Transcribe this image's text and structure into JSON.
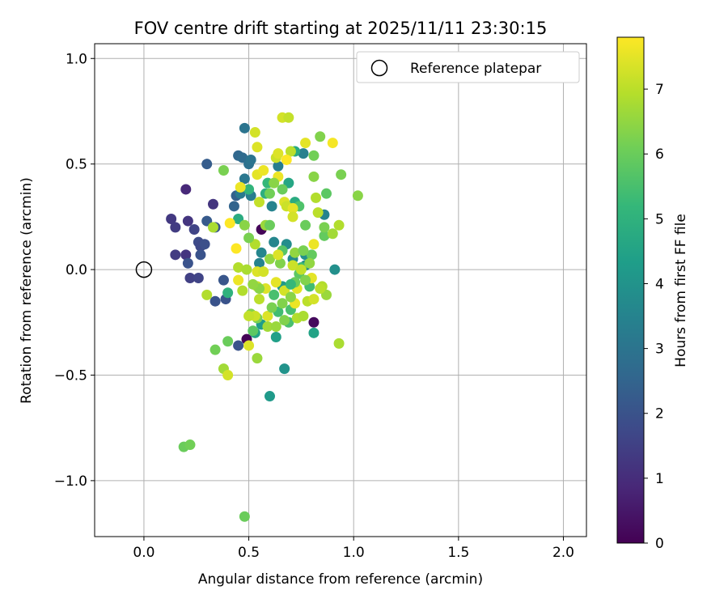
{
  "chart_data": {
    "type": "scatter",
    "title": "FOV centre drift starting at 2025/11/11 23:30:15",
    "xlabel": "Angular distance from reference (arcmin)",
    "ylabel": "Rotation from reference (arcmin)",
    "xlim": [
      -0.235,
      2.11
    ],
    "ylim": [
      -1.265,
      1.07
    ],
    "xticks": [
      0.0,
      0.5,
      1.0,
      1.5,
      2.0
    ],
    "xtick_labels": [
      "0.0",
      "0.5",
      "1.0",
      "1.5",
      "2.0"
    ],
    "yticks": [
      -1.0,
      -0.5,
      0.0,
      0.5,
      1.0
    ],
    "ytick_labels": [
      "−1.0",
      "−0.5",
      "0.0",
      "0.5",
      "1.0"
    ],
    "grid": true,
    "legend": {
      "label": "Reference platepar",
      "location": "top-right"
    },
    "reference_point": {
      "x": 0.0,
      "y": 0.0
    },
    "colorbar": {
      "label": "Hours from first FF file",
      "range": [
        0,
        7.8
      ],
      "ticks": [
        0,
        1,
        2,
        3,
        4,
        5,
        6,
        7
      ],
      "tick_labels": [
        "0",
        "1",
        "2",
        "3",
        "4",
        "5",
        "6",
        "7"
      ],
      "colormap": [
        "#440154",
        "#482878",
        "#3e4989",
        "#31688e",
        "#26828e",
        "#1f9e89",
        "#35b779",
        "#6ece58",
        "#b5de2b",
        "#fde725"
      ]
    },
    "points": [
      {
        "x": 0.49,
        "y": -0.33,
        "h": 0.05
      },
      {
        "x": 0.56,
        "y": 0.19,
        "h": 0.1
      },
      {
        "x": 0.81,
        "y": -0.25,
        "h": 0.2
      },
      {
        "x": 0.2,
        "y": 0.38,
        "h": 0.9
      },
      {
        "x": 0.33,
        "y": 0.31,
        "h": 1.2
      },
      {
        "x": 0.13,
        "y": 0.24,
        "h": 1.3
      },
      {
        "x": 0.21,
        "y": 0.23,
        "h": 1.2
      },
      {
        "x": 0.15,
        "y": 0.2,
        "h": 1.4
      },
      {
        "x": 0.24,
        "y": 0.19,
        "h": 1.6
      },
      {
        "x": 0.2,
        "y": 0.07,
        "h": 1.2
      },
      {
        "x": 0.15,
        "y": 0.07,
        "h": 1.4
      },
      {
        "x": 0.22,
        "y": -0.04,
        "h": 1.5
      },
      {
        "x": 0.26,
        "y": -0.04,
        "h": 1.6
      },
      {
        "x": 0.26,
        "y": 0.13,
        "h": 1.8
      },
      {
        "x": 0.27,
        "y": 0.11,
        "h": 1.7
      },
      {
        "x": 0.29,
        "y": 0.12,
        "h": 1.9
      },
      {
        "x": 0.27,
        "y": 0.07,
        "h": 2.0
      },
      {
        "x": 0.21,
        "y": 0.03,
        "h": 2.0
      },
      {
        "x": 0.3,
        "y": 0.23,
        "h": 2.2
      },
      {
        "x": 0.34,
        "y": 0.2,
        "h": 2.1
      },
      {
        "x": 0.3,
        "y": 0.5,
        "h": 2.3
      },
      {
        "x": 0.34,
        "y": -0.15,
        "h": 2.0
      },
      {
        "x": 0.39,
        "y": -0.14,
        "h": 2.0
      },
      {
        "x": 0.38,
        "y": -0.05,
        "h": 2.1
      },
      {
        "x": 0.45,
        "y": -0.36,
        "h": 2.0
      },
      {
        "x": 0.44,
        "y": 0.35,
        "h": 2.4
      },
      {
        "x": 0.43,
        "y": 0.3,
        "h": 2.5
      },
      {
        "x": 0.45,
        "y": 0.54,
        "h": 2.6
      },
      {
        "x": 0.47,
        "y": 0.53,
        "h": 2.7
      },
      {
        "x": 0.48,
        "y": 0.67,
        "h": 3.0
      },
      {
        "x": 0.5,
        "y": 0.5,
        "h": 2.9
      },
      {
        "x": 0.51,
        "y": 0.52,
        "h": 3.0
      },
      {
        "x": 0.48,
        "y": 0.43,
        "h": 3.1
      },
      {
        "x": 0.46,
        "y": 0.36,
        "h": 3.2
      },
      {
        "x": 0.51,
        "y": 0.35,
        "h": 3.3
      },
      {
        "x": 0.64,
        "y": 0.49,
        "h": 3.3
      },
      {
        "x": 0.76,
        "y": 0.55,
        "h": 3.4
      },
      {
        "x": 0.61,
        "y": 0.3,
        "h": 3.5
      },
      {
        "x": 0.55,
        "y": 0.03,
        "h": 3.5
      },
      {
        "x": 0.56,
        "y": 0.08,
        "h": 3.6
      },
      {
        "x": 0.62,
        "y": 0.13,
        "h": 3.6
      },
      {
        "x": 0.68,
        "y": 0.12,
        "h": 3.8
      },
      {
        "x": 0.71,
        "y": 0.05,
        "h": 3.7
      },
      {
        "x": 0.77,
        "y": 0.07,
        "h": 3.9
      },
      {
        "x": 0.77,
        "y": 0.02,
        "h": 3.8
      },
      {
        "x": 0.86,
        "y": 0.26,
        "h": 3.5
      },
      {
        "x": 0.91,
        "y": 0.0,
        "h": 3.9
      },
      {
        "x": 0.67,
        "y": -0.47,
        "h": 4.0
      },
      {
        "x": 0.6,
        "y": -0.6,
        "h": 4.2
      },
      {
        "x": 0.63,
        "y": -0.32,
        "h": 4.4
      },
      {
        "x": 0.56,
        "y": -0.26,
        "h": 4.3
      },
      {
        "x": 0.53,
        "y": -0.3,
        "h": 4.5
      },
      {
        "x": 0.81,
        "y": -0.3,
        "h": 4.5
      },
      {
        "x": 0.66,
        "y": -0.08,
        "h": 4.2
      },
      {
        "x": 0.69,
        "y": 0.41,
        "h": 4.6
      },
      {
        "x": 0.72,
        "y": 0.56,
        "h": 4.7
      },
      {
        "x": 0.72,
        "y": 0.32,
        "h": 4.8
      },
      {
        "x": 0.58,
        "y": 0.36,
        "h": 4.9
      },
      {
        "x": 0.45,
        "y": 0.24,
        "h": 4.8
      },
      {
        "x": 0.4,
        "y": -0.11,
        "h": 5.0
      },
      {
        "x": 0.5,
        "y": 0.38,
        "h": 5.1
      },
      {
        "x": 0.59,
        "y": 0.41,
        "h": 5.2
      },
      {
        "x": 0.75,
        "y": 0.01,
        "h": 5.3
      },
      {
        "x": 0.79,
        "y": -0.08,
        "h": 5.4
      },
      {
        "x": 0.7,
        "y": -0.19,
        "h": 5.5
      },
      {
        "x": 0.64,
        "y": -0.2,
        "h": 5.4
      },
      {
        "x": 0.74,
        "y": 0.3,
        "h": 5.6
      },
      {
        "x": 0.66,
        "y": 0.09,
        "h": 5.7
      },
      {
        "x": 0.69,
        "y": -0.25,
        "h": 5.5
      },
      {
        "x": 0.74,
        "y": -0.02,
        "h": 5.8
      },
      {
        "x": 0.86,
        "y": 0.16,
        "h": 5.9
      },
      {
        "x": 0.87,
        "y": 0.36,
        "h": 5.8
      },
      {
        "x": 0.94,
        "y": 0.45,
        "h": 6.2
      },
      {
        "x": 1.02,
        "y": 0.35,
        "h": 6.4
      },
      {
        "x": 0.84,
        "y": 0.63,
        "h": 6.3
      },
      {
        "x": 0.81,
        "y": 0.54,
        "h": 6.1
      },
      {
        "x": 0.81,
        "y": 0.44,
        "h": 6.4
      },
      {
        "x": 0.77,
        "y": 0.21,
        "h": 6.0
      },
      {
        "x": 0.86,
        "y": 0.2,
        "h": 6.2
      },
      {
        "x": 0.8,
        "y": 0.07,
        "h": 5.9
      },
      {
        "x": 0.65,
        "y": 0.03,
        "h": 6.3
      },
      {
        "x": 0.72,
        "y": 0.08,
        "h": 6.5
      },
      {
        "x": 0.54,
        "y": -0.42,
        "h": 6.6
      },
      {
        "x": 0.54,
        "y": -0.23,
        "h": 6.2
      },
      {
        "x": 0.51,
        "y": -0.21,
        "h": 6.3
      },
      {
        "x": 0.4,
        "y": -0.34,
        "h": 6.0
      },
      {
        "x": 0.34,
        "y": -0.38,
        "h": 6.1
      },
      {
        "x": 0.38,
        "y": -0.47,
        "h": 6.7
      },
      {
        "x": 0.19,
        "y": -0.84,
        "h": 6.0
      },
      {
        "x": 0.22,
        "y": -0.83,
        "h": 6.1
      },
      {
        "x": 0.48,
        "y": -1.17,
        "h": 6.0
      },
      {
        "x": 0.38,
        "y": 0.47,
        "h": 6.2
      },
      {
        "x": 0.33,
        "y": 0.2,
        "h": 6.8
      },
      {
        "x": 0.3,
        "y": -0.12,
        "h": 6.9
      },
      {
        "x": 0.45,
        "y": 0.01,
        "h": 6.9
      },
      {
        "x": 0.47,
        "y": -0.1,
        "h": 6.9
      },
      {
        "x": 0.58,
        "y": 0.21,
        "h": 6.6
      },
      {
        "x": 0.6,
        "y": 0.05,
        "h": 6.5
      },
      {
        "x": 0.59,
        "y": -0.27,
        "h": 6.7
      },
      {
        "x": 0.63,
        "y": -0.27,
        "h": 6.6
      },
      {
        "x": 0.67,
        "y": -0.24,
        "h": 6.3
      },
      {
        "x": 0.73,
        "y": -0.23,
        "h": 6.9
      },
      {
        "x": 0.76,
        "y": -0.22,
        "h": 6.8
      },
      {
        "x": 0.78,
        "y": -0.15,
        "h": 7.0
      },
      {
        "x": 0.85,
        "y": -0.08,
        "h": 6.9
      },
      {
        "x": 0.87,
        "y": -0.12,
        "h": 6.6
      },
      {
        "x": 0.93,
        "y": -0.35,
        "h": 6.8
      },
      {
        "x": 0.93,
        "y": 0.21,
        "h": 6.9
      },
      {
        "x": 0.9,
        "y": 0.17,
        "h": 6.7
      },
      {
        "x": 0.82,
        "y": 0.34,
        "h": 6.9
      },
      {
        "x": 0.83,
        "y": 0.27,
        "h": 7.0
      },
      {
        "x": 0.66,
        "y": 0.72,
        "h": 7.3
      },
      {
        "x": 0.69,
        "y": 0.72,
        "h": 7.1
      },
      {
        "x": 0.53,
        "y": 0.65,
        "h": 7.3
      },
      {
        "x": 0.54,
        "y": 0.58,
        "h": 7.4
      },
      {
        "x": 0.63,
        "y": 0.53,
        "h": 7.2
      },
      {
        "x": 0.64,
        "y": 0.55,
        "h": 7.4
      },
      {
        "x": 0.7,
        "y": 0.56,
        "h": 7.0
      },
      {
        "x": 0.77,
        "y": 0.6,
        "h": 7.5
      },
      {
        "x": 0.9,
        "y": 0.6,
        "h": 7.7
      },
      {
        "x": 0.68,
        "y": 0.52,
        "h": 7.8
      },
      {
        "x": 0.54,
        "y": 0.45,
        "h": 7.5
      },
      {
        "x": 0.57,
        "y": 0.47,
        "h": 7.6
      },
      {
        "x": 0.64,
        "y": 0.44,
        "h": 7.6
      },
      {
        "x": 0.46,
        "y": 0.39,
        "h": 7.6
      },
      {
        "x": 0.55,
        "y": 0.32,
        "h": 7.1
      },
      {
        "x": 0.67,
        "y": 0.32,
        "h": 7.4
      },
      {
        "x": 0.68,
        "y": 0.3,
        "h": 7.2
      },
      {
        "x": 0.71,
        "y": 0.29,
        "h": 7.5
      },
      {
        "x": 0.71,
        "y": 0.25,
        "h": 7.3
      },
      {
        "x": 0.41,
        "y": 0.22,
        "h": 7.8
      },
      {
        "x": 0.44,
        "y": 0.1,
        "h": 7.9
      },
      {
        "x": 0.45,
        "y": -0.05,
        "h": 7.6
      },
      {
        "x": 0.54,
        "y": -0.01,
        "h": 7.4
      },
      {
        "x": 0.57,
        "y": -0.01,
        "h": 7.3
      },
      {
        "x": 0.54,
        "y": -0.08,
        "h": 7.2
      },
      {
        "x": 0.63,
        "y": -0.06,
        "h": 7.5
      },
      {
        "x": 0.64,
        "y": 0.07,
        "h": 7.4
      },
      {
        "x": 0.67,
        "y": -0.1,
        "h": 7.3
      },
      {
        "x": 0.71,
        "y": 0.02,
        "h": 7.2
      },
      {
        "x": 0.81,
        "y": 0.12,
        "h": 7.6
      },
      {
        "x": 0.8,
        "y": -0.04,
        "h": 7.5
      },
      {
        "x": 0.73,
        "y": -0.09,
        "h": 7.5
      },
      {
        "x": 0.75,
        "y": 0.0,
        "h": 7.1
      },
      {
        "x": 0.81,
        "y": -0.14,
        "h": 7.3
      },
      {
        "x": 0.84,
        "y": -0.09,
        "h": 7.0
      },
      {
        "x": 0.72,
        "y": -0.16,
        "h": 7.6
      },
      {
        "x": 0.59,
        "y": -0.22,
        "h": 7.4
      },
      {
        "x": 0.53,
        "y": -0.22,
        "h": 7.2
      },
      {
        "x": 0.5,
        "y": -0.36,
        "h": 7.4
      },
      {
        "x": 0.5,
        "y": -0.22,
        "h": 7.1
      },
      {
        "x": 0.55,
        "y": -0.14,
        "h": 7.0
      },
      {
        "x": 0.58,
        "y": -0.09,
        "h": 7.4
      },
      {
        "x": 0.4,
        "y": -0.5,
        "h": 7.3
      },
      {
        "x": 0.49,
        "y": 0.0,
        "h": 6.8
      },
      {
        "x": 0.53,
        "y": 0.12,
        "h": 6.9
      },
      {
        "x": 0.5,
        "y": 0.15,
        "h": 6.2
      },
      {
        "x": 0.48,
        "y": 0.21,
        "h": 6.4
      },
      {
        "x": 0.55,
        "y": -0.09,
        "h": 6.4
      },
      {
        "x": 0.52,
        "y": -0.07,
        "h": 6.5
      },
      {
        "x": 0.61,
        "y": -0.18,
        "h": 6.2
      },
      {
        "x": 0.66,
        "y": -0.16,
        "h": 6.3
      },
      {
        "x": 0.72,
        "y": -0.06,
        "h": 6.0
      },
      {
        "x": 0.77,
        "y": -0.05,
        "h": 6.3
      },
      {
        "x": 0.7,
        "y": -0.13,
        "h": 6.4
      },
      {
        "x": 0.76,
        "y": 0.09,
        "h": 6.2
      },
      {
        "x": 0.79,
        "y": 0.03,
        "h": 6.5
      },
      {
        "x": 0.6,
        "y": 0.36,
        "h": 6.1
      },
      {
        "x": 0.62,
        "y": 0.41,
        "h": 6.4
      },
      {
        "x": 0.66,
        "y": 0.38,
        "h": 6.0
      },
      {
        "x": 0.6,
        "y": 0.21,
        "h": 6.0
      },
      {
        "x": 0.52,
        "y": -0.29,
        "h": 5.8
      },
      {
        "x": 0.62,
        "y": -0.12,
        "h": 5.5
      },
      {
        "x": 0.7,
        "y": -0.07,
        "h": 5.2
      }
    ]
  }
}
